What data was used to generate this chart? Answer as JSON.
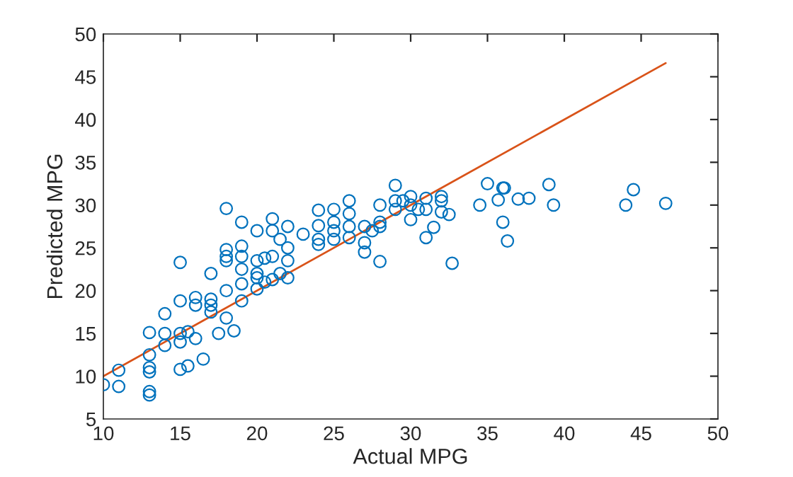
{
  "chart_data": {
    "type": "scatter",
    "xlabel": "Actual MPG",
    "ylabel": "Predicted MPG",
    "xlim": [
      10,
      50
    ],
    "xticks": [
      10,
      15,
      20,
      25,
      30,
      35,
      40,
      45,
      50
    ],
    "ylim": [
      5,
      50
    ],
    "yticks": [
      5,
      10,
      15,
      20,
      25,
      30,
      35,
      40,
      45,
      50
    ],
    "grid": false,
    "marker": "circle",
    "series": [
      {
        "color": "#0072bd",
        "x": [
          10,
          11,
          11,
          13,
          13,
          13,
          13,
          13,
          13,
          14,
          14,
          14,
          15,
          15,
          15,
          15,
          15,
          15.5,
          15.5,
          16,
          16,
          16,
          16.5,
          17,
          17,
          17,
          17,
          17.5,
          18,
          18,
          18,
          18,
          18,
          18,
          18.5,
          19,
          19,
          19,
          19,
          19,
          19,
          20,
          20,
          20,
          20,
          20,
          20.5,
          20.5,
          21,
          21,
          21,
          21,
          21.5,
          21.5,
          22,
          22,
          22,
          22,
          23,
          24,
          24,
          24,
          24,
          25,
          25,
          25,
          25,
          26,
          26,
          26,
          26,
          27,
          27,
          27,
          27.5,
          28,
          28,
          28,
          28,
          29,
          29,
          29,
          29.5,
          30,
          30,
          30,
          30.5,
          31,
          31,
          31,
          31.5,
          32,
          32,
          32,
          32.5,
          32.7,
          34.5,
          35,
          35.7,
          36,
          36.1,
          36,
          36.3,
          37,
          37.7,
          39,
          39.3,
          44,
          44.5,
          46.6
        ],
        "values": [
          9,
          8.8,
          10.7,
          15.1,
          12.5,
          11,
          10.5,
          8.2,
          7.8,
          17.3,
          15,
          13.6,
          23.3,
          18.8,
          15,
          14,
          10.8,
          15.2,
          11.2,
          18.3,
          19.2,
          14.4,
          12,
          22,
          19,
          18.3,
          17.5,
          15,
          29.6,
          24.8,
          24,
          23.5,
          20,
          16.8,
          15.3,
          28,
          25.2,
          24,
          22.5,
          18.8,
          20.8,
          27,
          23.5,
          22,
          21.5,
          20.2,
          23.8,
          21,
          28.4,
          24,
          27,
          21.3,
          26,
          22,
          27.5,
          25,
          23.5,
          21.5,
          26.6,
          29.4,
          27.6,
          26,
          25.4,
          29.5,
          28,
          26,
          27,
          30.5,
          29,
          27.5,
          26.2,
          27.5,
          25.6,
          24.5,
          27,
          30,
          28,
          27.5,
          23.4,
          32.3,
          30.5,
          29.5,
          30.5,
          31,
          30,
          28.3,
          29.5,
          30.8,
          29.5,
          26.2,
          27.4,
          31,
          30.5,
          29.2,
          28.9,
          23.2,
          30,
          32.5,
          30.6,
          32,
          32,
          28,
          25.8,
          30.7,
          30.8,
          32.4,
          30,
          30,
          31.8,
          30.2
        ]
      },
      {
        "type": "line",
        "color": "#d95319",
        "marker": "none",
        "line_style": "solid",
        "x": [
          10,
          46.6
        ],
        "values": [
          10,
          46.6
        ]
      }
    ]
  }
}
